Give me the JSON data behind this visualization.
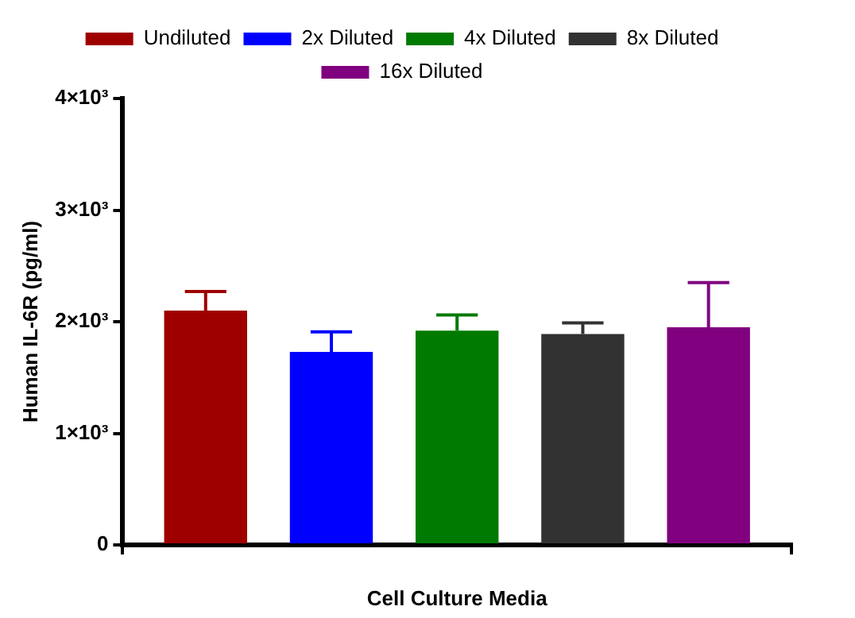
{
  "chart_data": {
    "type": "bar",
    "xlabel": "Cell Culture Media",
    "ylabel": "Human IL-6R (pg/ml)",
    "categories": [
      null
    ],
    "series": [
      {
        "name": "Undiluted",
        "color": "#9e0000",
        "values": [
          2100
        ],
        "errors": [
          [
            2100,
            2270
          ]
        ]
      },
      {
        "name": "2x Diluted",
        "color": "#0000ff",
        "values": [
          1730
        ],
        "errors": [
          [
            1730,
            1910
          ]
        ]
      },
      {
        "name": "4x Diluted",
        "color": "#007a00",
        "values": [
          1920
        ],
        "errors": [
          [
            1920,
            2060
          ]
        ]
      },
      {
        "name": "8x Diluted",
        "color": "#323232",
        "values": [
          1890
        ],
        "errors": [
          [
            1890,
            1990
          ]
        ]
      },
      {
        "name": "16x Diluted",
        "color": "#800080",
        "values": [
          1950
        ],
        "errors": [
          [
            1950,
            2350
          ]
        ]
      }
    ],
    "ylim": [
      0,
      4000
    ],
    "yticks": [
      0,
      {
        "value": 1000,
        "label": "1×10³"
      },
      {
        "value": 2000,
        "label": "2×10³"
      },
      {
        "value": 3000,
        "label": "3×10³"
      },
      {
        "value": 4000,
        "label": "4×10³"
      }
    ],
    "grid": false,
    "legend": "top"
  }
}
